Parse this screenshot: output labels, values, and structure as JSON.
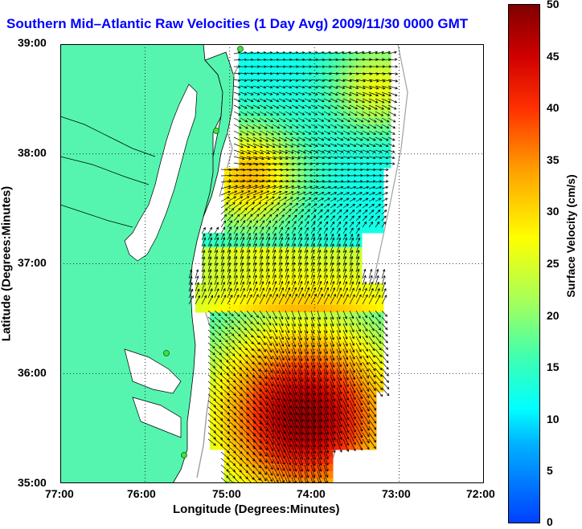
{
  "title": "Southern Mid–Atlantic Raw Velocities (1 Day Avg) 2009/11/30 0000 GMT",
  "x_axis": {
    "label": "Longitude (Degrees:Minutes)",
    "ticks": [
      "77:00",
      "76:00",
      "75:00",
      "74:00",
      "73:00",
      "72:00"
    ],
    "range": [
      -77,
      -72
    ]
  },
  "y_axis": {
    "label": "Latitude (Degrees:Minutes)",
    "ticks": [
      "39:00",
      "38:00",
      "37:00",
      "36:00",
      "35:00"
    ],
    "range": [
      35,
      39
    ]
  },
  "colorbar": {
    "label": "Surface Velocity (cm/s)",
    "ticks": [
      "50",
      "45",
      "40",
      "35",
      "30",
      "25",
      "20",
      "15",
      "10",
      "5",
      "0"
    ],
    "range": [
      0,
      50
    ]
  },
  "colors": {
    "land": "#55f5b0",
    "title": "#0000ff"
  },
  "grid": "dotted"
}
